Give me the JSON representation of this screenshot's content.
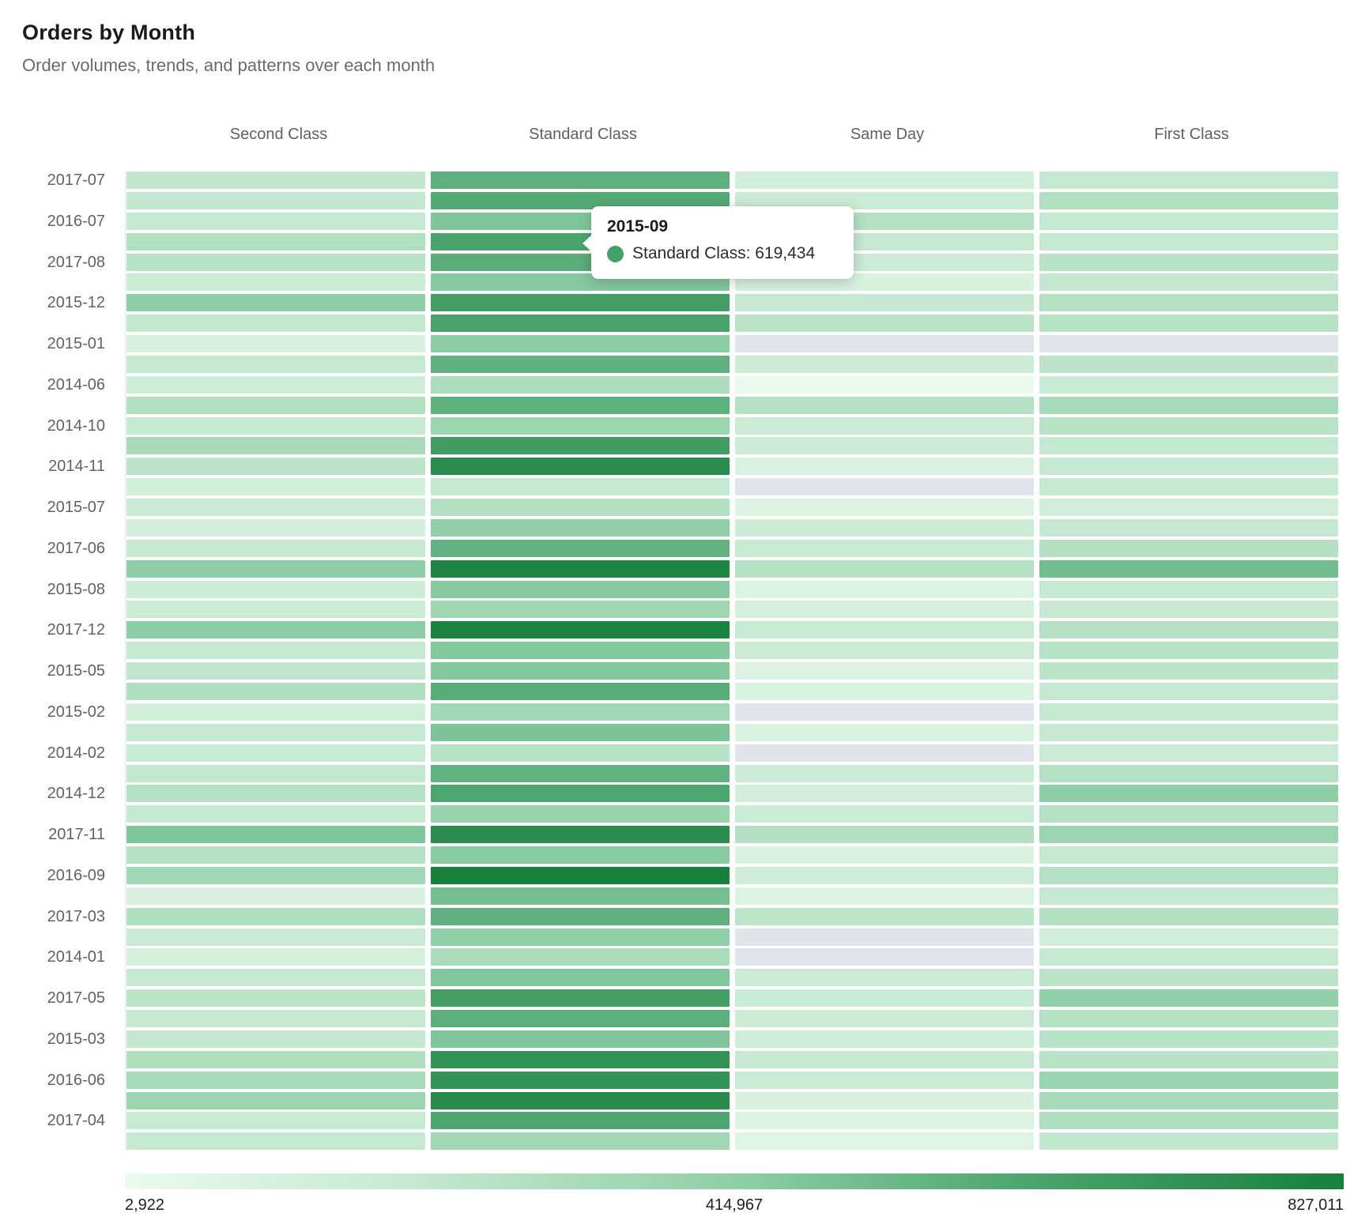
{
  "header": {
    "title": "Orders by Month",
    "subtitle": "Order volumes, trends, and patterns over each month"
  },
  "tooltip": {
    "title": "2015-09",
    "label_line": "Standard Class: 619,434",
    "marker_color": "#42a169"
  },
  "legend": {
    "min": "2,922",
    "mid": "414,967",
    "max": "827,011"
  },
  "colors": {
    "scale_stops": [
      "#ebfaef",
      "#c2e7ce",
      "#8fcfa7",
      "#4aa36c",
      "#17803d"
    ],
    "missing": "#e1e5eb",
    "domain_min": 2922,
    "domain_max": 827011
  },
  "chart_data": {
    "type": "heatmap",
    "title": "Orders by Month",
    "columns": [
      "Second Class",
      "Standard Class",
      "Same Day",
      "First Class"
    ],
    "colorbar": {
      "min": 2922,
      "mid": 414967,
      "max": 827011
    },
    "hover": {
      "row_index": 3,
      "col_index": 1,
      "month": "2015-09",
      "series": "Standard Class",
      "value": 619434
    },
    "missing_value_note": "null cells render as gray (no data)",
    "rows": [
      {
        "label": "2017-07",
        "values": [
          210000,
          560400,
          126800,
          195400
        ]
      },
      {
        "label": "",
        "values": [
          205300,
          590100,
          168200,
          277600
        ]
      },
      {
        "label": "2016-07",
        "values": [
          195800,
          455900,
          259300,
          192300
        ]
      },
      {
        "label": "",
        "values": [
          279100,
          619434,
          189600,
          197800
        ]
      },
      {
        "label": "2017-08",
        "values": [
          255600,
          571300,
          161000,
          252200
        ]
      },
      {
        "label": "",
        "values": [
          165400,
          440800,
          94700,
          201600
        ]
      },
      {
        "label": "2015-12",
        "values": [
          415700,
          649800,
          185900,
          257900
        ]
      },
      {
        "label": "",
        "values": [
          200900,
          624600,
          239800,
          254300
        ]
      },
      {
        "label": "2015-01",
        "values": [
          100200,
          424900,
          null,
          null
        ]
      },
      {
        "label": "",
        "values": [
          198100,
          554800,
          159300,
          232600
        ]
      },
      {
        "label": "2014-06",
        "values": [
          140600,
          294800,
          2922,
          171900
        ]
      },
      {
        "label": "",
        "values": [
          277900,
          561700,
          257400,
          313900
        ]
      },
      {
        "label": "2014-10",
        "values": [
          192400,
          359600,
          164800,
          249700
        ]
      },
      {
        "label": "",
        "values": [
          309800,
          654300,
          161700,
          196100
        ]
      },
      {
        "label": "2014-11",
        "values": [
          238300,
          755100,
          91800,
          188400
        ]
      },
      {
        "label": "",
        "values": [
          132300,
          195300,
          null,
          191700
        ]
      },
      {
        "label": "2015-07",
        "values": [
          172200,
          268100,
          75400,
          129800
        ]
      },
      {
        "label": "",
        "values": [
          137900,
          412500,
          157600,
          186000
        ]
      },
      {
        "label": "2017-06",
        "values": [
          193700,
          545200,
          177900,
          271500
        ]
      },
      {
        "label": "",
        "values": [
          417600,
          800500,
          262000,
          500300
        ]
      },
      {
        "label": "2015-08",
        "values": [
          158200,
          438000,
          82300,
          190000
        ]
      },
      {
        "label": "",
        "values": [
          169900,
          355400,
          119700,
          185200
        ]
      },
      {
        "label": "2017-12",
        "values": [
          427700,
          812000,
          181800,
          257700
        ]
      },
      {
        "label": "",
        "values": [
          187500,
          450200,
          163600,
          251600
        ]
      },
      {
        "label": "2015-05",
        "values": [
          215400,
          447800,
          78100,
          235700
        ]
      },
      {
        "label": "",
        "values": [
          281800,
          574900,
          88000,
          193800
        ]
      },
      {
        "label": "2015-02",
        "values": [
          135800,
          342100,
          null,
          189900
        ]
      },
      {
        "label": "",
        "values": [
          196300,
          464700,
          86200,
          183700
        ]
      },
      {
        "label": "2014-02",
        "values": [
          174100,
          251700,
          null,
          161900
        ]
      },
      {
        "label": "",
        "values": [
          204600,
          548300,
          155800,
          265600
        ]
      },
      {
        "label": "2014-12",
        "values": [
          262200,
          611900,
          125900,
          415200
        ]
      },
      {
        "label": "",
        "values": [
          190300,
          371800,
          167500,
          259800
        ]
      },
      {
        "label": "2017-11",
        "values": [
          462100,
          750200,
          267800,
          364900
        ]
      },
      {
        "label": "",
        "values": [
          264700,
          435600,
          89700,
          191500
        ]
      },
      {
        "label": "2016-09",
        "values": [
          344600,
          827011,
          150400,
          264300
        ]
      },
      {
        "label": "",
        "values": [
          100800,
          489600,
          83600,
          197900
        ]
      },
      {
        "label": "2017-03",
        "values": [
          285200,
          557800,
          229500,
          269400
        ]
      },
      {
        "label": "",
        "values": [
          176400,
          409800,
          null,
          137700
        ]
      },
      {
        "label": "2014-01",
        "values": [
          112600,
          304700,
          null,
          187800
        ]
      },
      {
        "label": "",
        "values": [
          199200,
          452300,
          160600,
          239200
        ]
      },
      {
        "label": "2017-05",
        "values": [
          236400,
          648100,
          171700,
          407800
        ]
      },
      {
        "label": "",
        "values": [
          192800,
          567500,
          158900,
          263400
        ]
      },
      {
        "label": "2015-03",
        "values": [
          203200,
          457600,
          150100,
          255600
        ]
      },
      {
        "label": "",
        "values": [
          280400,
          714800,
          187200,
          250300
        ]
      },
      {
        "label": "2016-06",
        "values": [
          320600,
          708400,
          166300,
          369700
        ]
      },
      {
        "label": "",
        "values": [
          364900,
          759800,
          94100,
          311800
        ]
      },
      {
        "label": "2017-04",
        "values": [
          177700,
          607600,
          76000,
          283800
        ]
      },
      {
        "label": "",
        "values": [
          188600,
          348100,
          67500,
          202100
        ]
      }
    ]
  }
}
